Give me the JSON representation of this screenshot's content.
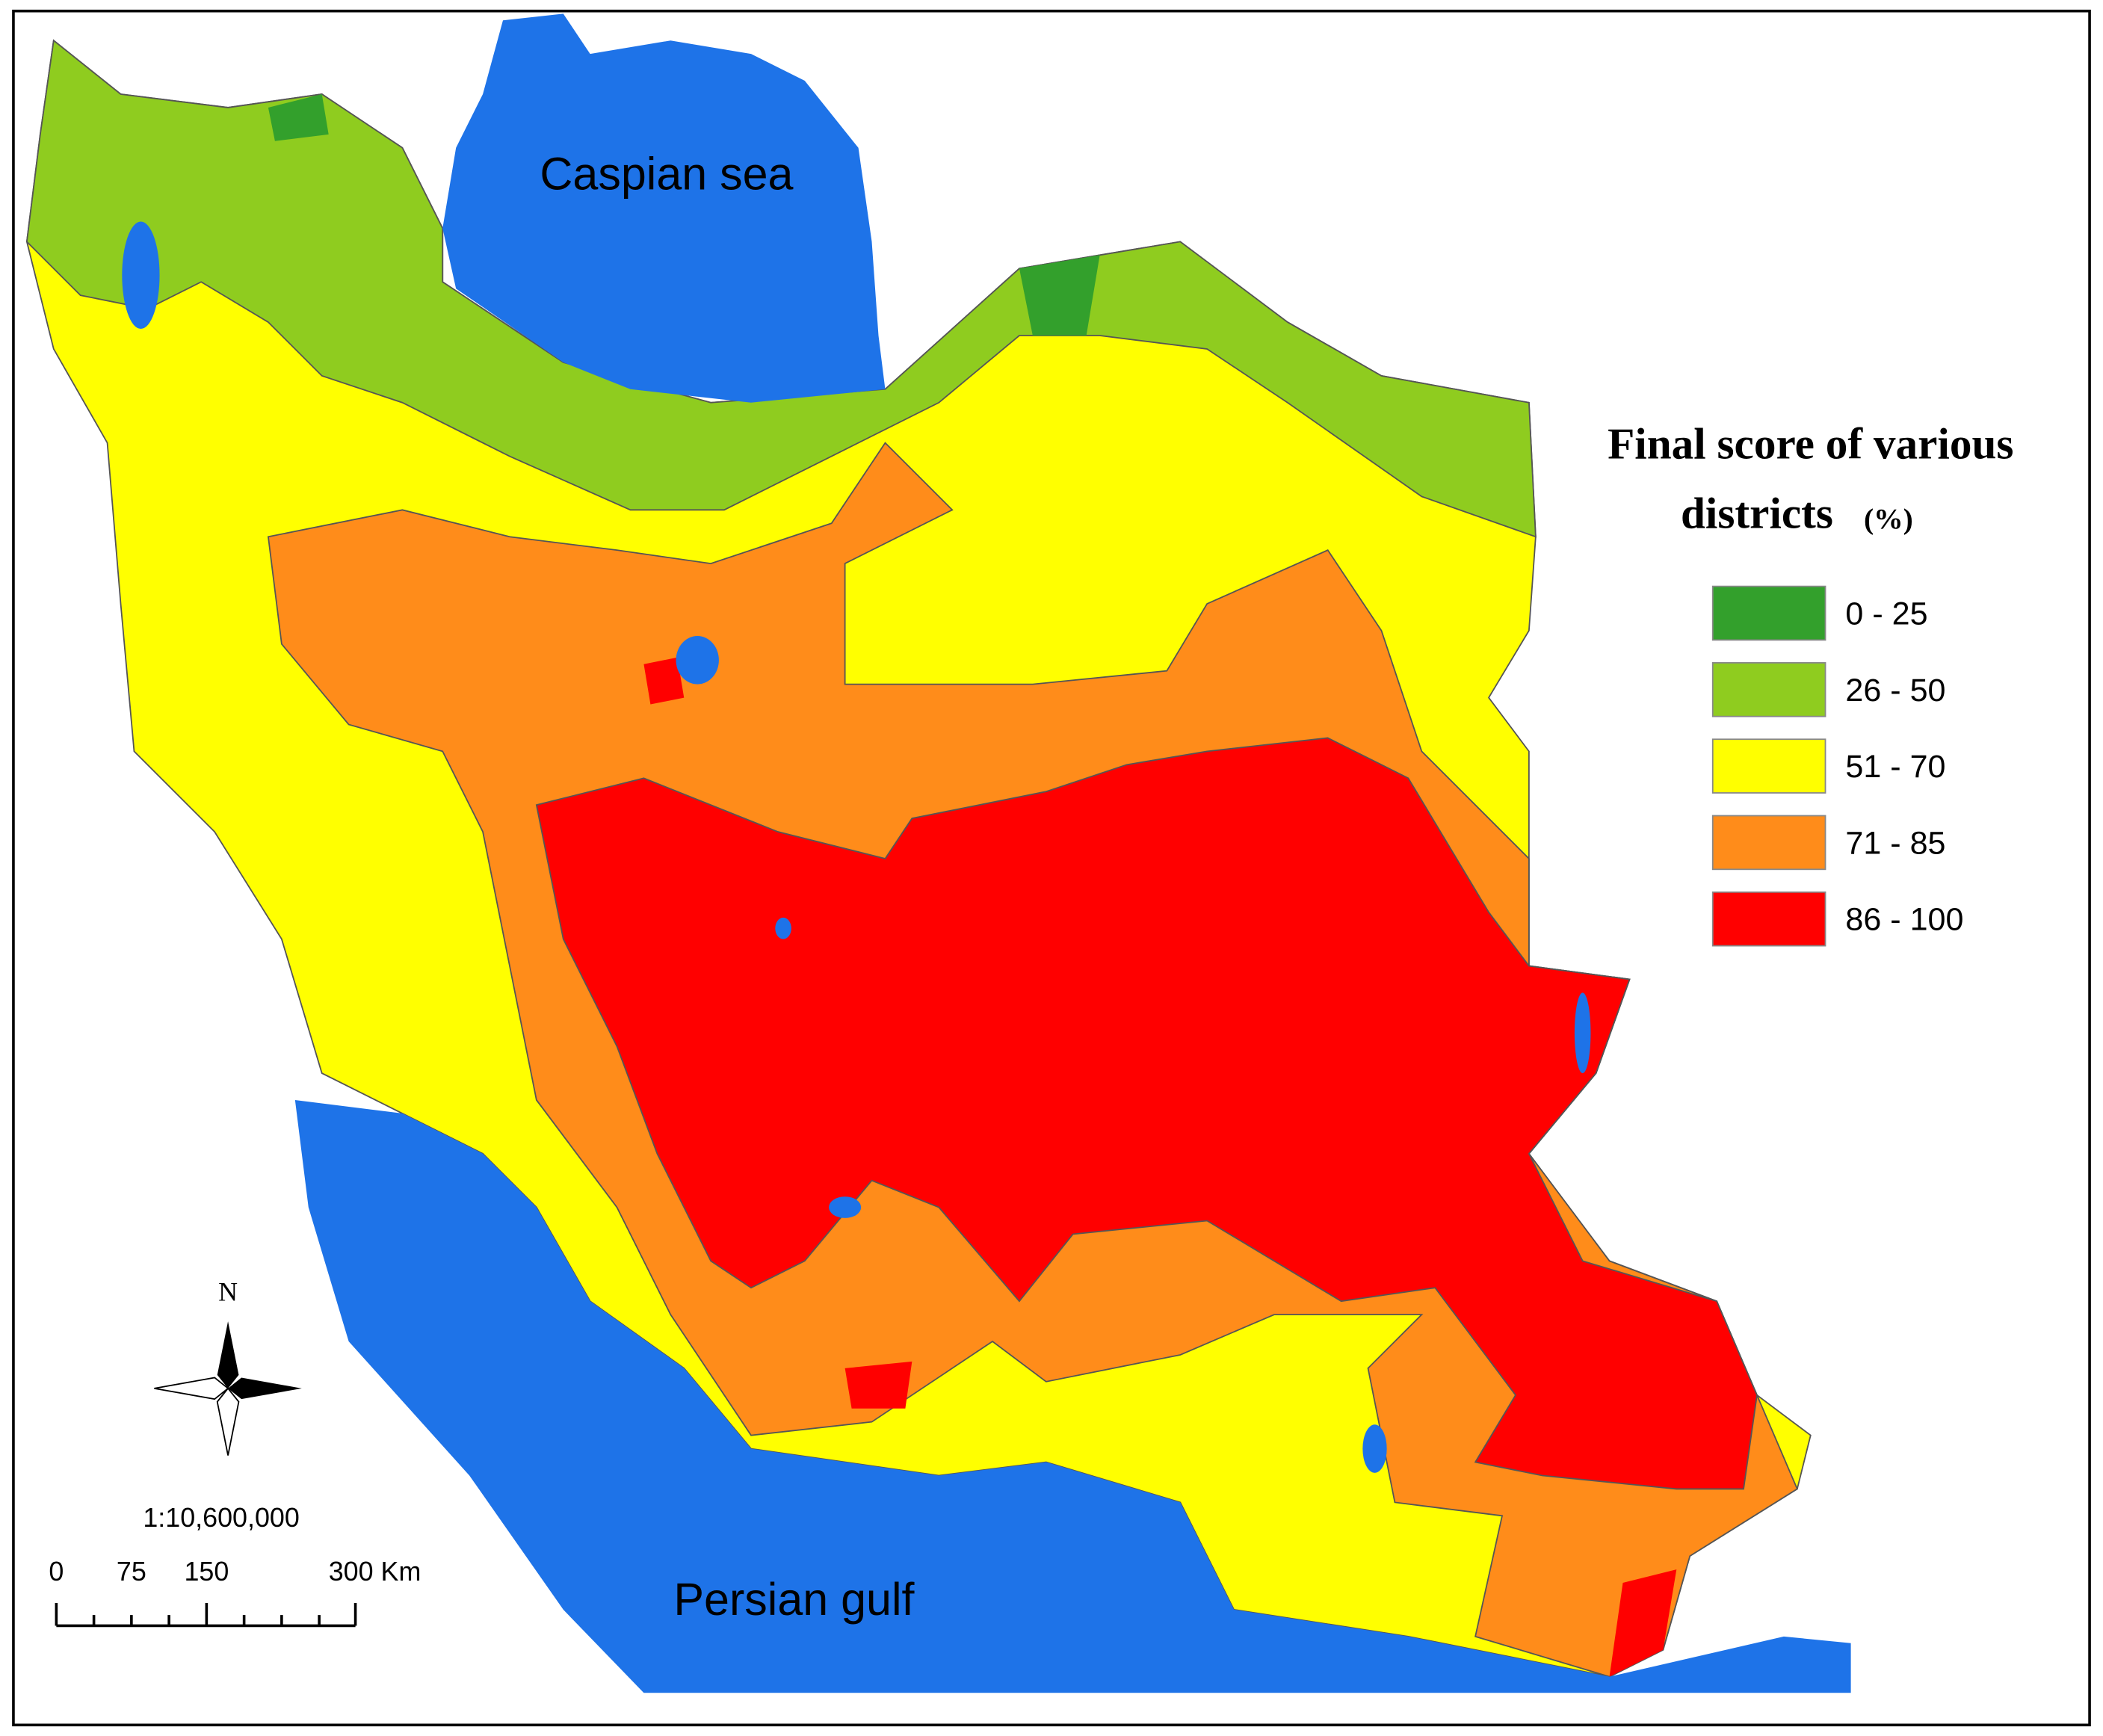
{
  "map": {
    "labels": {
      "caspian": "Caspian sea",
      "gulf": "Persian gulf"
    },
    "legend": {
      "title_line1": "Final score of various",
      "title_line2": "districts",
      "unit": "(%)",
      "items": [
        {
          "label": "0 - 25",
          "color": "#33a02c"
        },
        {
          "label": "26 - 50",
          "color": "#8fcc1f"
        },
        {
          "label": "51 - 70",
          "color": "#ffff00"
        },
        {
          "label": "71 - 85",
          "color": "#ff8c1a"
        },
        {
          "label": "86 - 100",
          "color": "#ff0000"
        }
      ]
    },
    "north": "N",
    "scale": {
      "ratio": "1:10,600,000",
      "ticks": [
        "0",
        "75",
        "150",
        "300 Km"
      ]
    }
  }
}
